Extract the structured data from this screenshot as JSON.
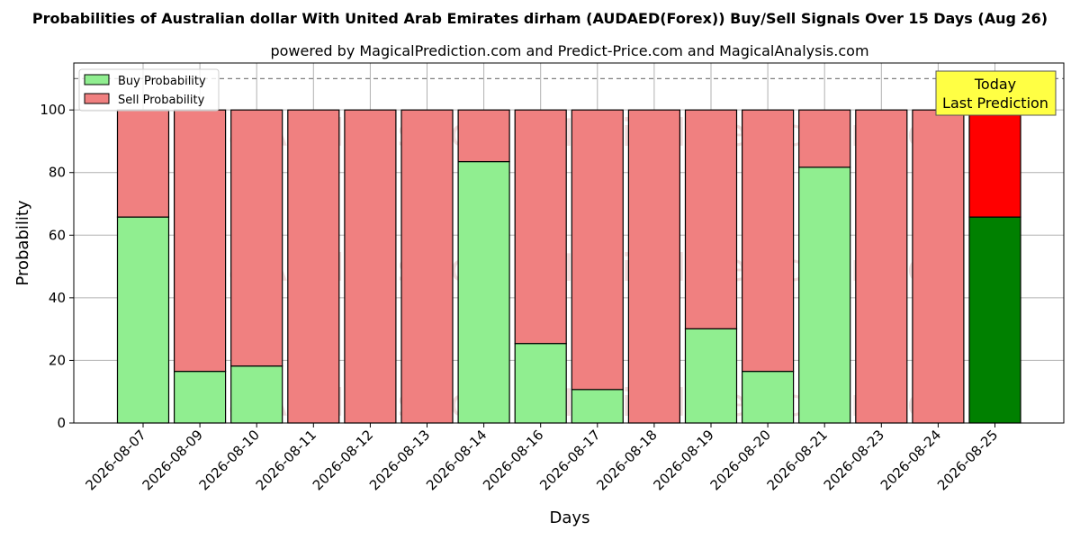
{
  "chart_data": {
    "type": "bar",
    "stacked": true,
    "title": "Probabilities of Australian dollar With United Arab Emirates dirham (AUDAED(Forex)) Buy/Sell Signals Over 15 Days (Aug 26)",
    "subtitle": "powered by MagicalPrediction.com and Predict-Price.com and MagicalAnalysis.com",
    "xlabel": "Days",
    "ylabel": "Probability",
    "ylim": [
      0,
      115
    ],
    "yticks": [
      0,
      20,
      40,
      60,
      80,
      100
    ],
    "grid": true,
    "reference_line": 110,
    "legend_position": "top-left",
    "categories": [
      "2026-08-07",
      "2026-08-09",
      "2026-08-10",
      "2026-08-11",
      "2026-08-12",
      "2026-08-13",
      "2026-08-14",
      "2026-08-16",
      "2026-08-17",
      "2026-08-18",
      "2026-08-19",
      "2026-08-20",
      "2026-08-21",
      "2026-08-23",
      "2026-08-24",
      "2026-08-25"
    ],
    "series": [
      {
        "name": "Buy Probability",
        "color": "#90ee90",
        "highlight_color": "#008000",
        "values": [
          65.8,
          16.5,
          18.2,
          0,
          0,
          0,
          83.5,
          25.4,
          10.7,
          0,
          30.1,
          16.5,
          81.7,
          0,
          0,
          65.8
        ]
      },
      {
        "name": "Sell Probability",
        "color": "#f08080",
        "highlight_color": "#ff0000",
        "values": [
          34.2,
          83.5,
          81.8,
          100,
          100,
          100,
          16.5,
          74.6,
          89.3,
          100,
          69.9,
          83.5,
          18.3,
          100,
          100,
          34.2
        ]
      }
    ],
    "highlight_index": 15,
    "annotation": {
      "lines": [
        "Today",
        "Last Prediction"
      ],
      "bg_color": "#ffff44"
    },
    "watermarks": [
      "MagicalAnalysis.com",
      "MagicalPrediction.com"
    ]
  }
}
